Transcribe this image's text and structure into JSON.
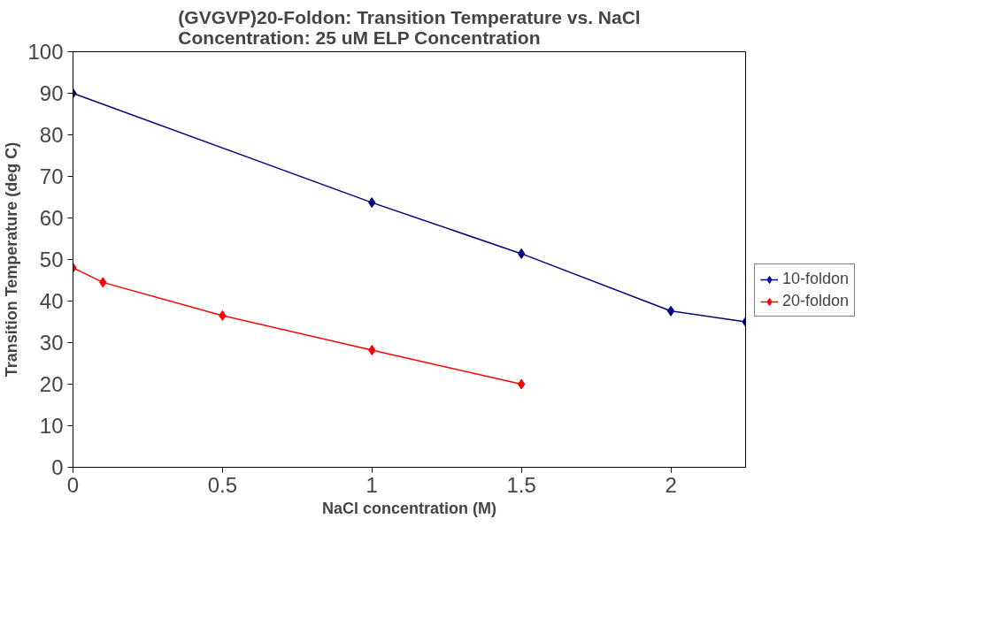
{
  "chart_data": {
    "type": "line",
    "title": "(GVGVP)20-Foldon: Transition Temperature vs. NaCl\nConcentration:  25 uM ELP Concentration",
    "xlabel": "NaCl concentration (M)",
    "ylabel": "Transition Temperature (deg C)",
    "xlim": [
      0,
      2.25
    ],
    "xticks": [
      0,
      0.5,
      1,
      1.5,
      2
    ],
    "ylim": [
      0,
      100
    ],
    "yticks": [
      0,
      10,
      20,
      30,
      40,
      50,
      60,
      70,
      80,
      90,
      100
    ],
    "grid": false,
    "legend": "right",
    "marker": "diamond",
    "line_style": "solid",
    "series": [
      {
        "name": "10-foldon",
        "color": "#000080",
        "x": [
          0,
          1,
          1.5,
          2,
          2.25
        ],
        "values": [
          90,
          63.7,
          51.4,
          37.6,
          35
        ]
      },
      {
        "name": "20-foldon",
        "color": "#ff0000",
        "x": [
          0,
          0.1,
          0.5,
          1,
          1.5
        ],
        "values": [
          48,
          44.5,
          36.5,
          28.2,
          20
        ]
      }
    ]
  }
}
